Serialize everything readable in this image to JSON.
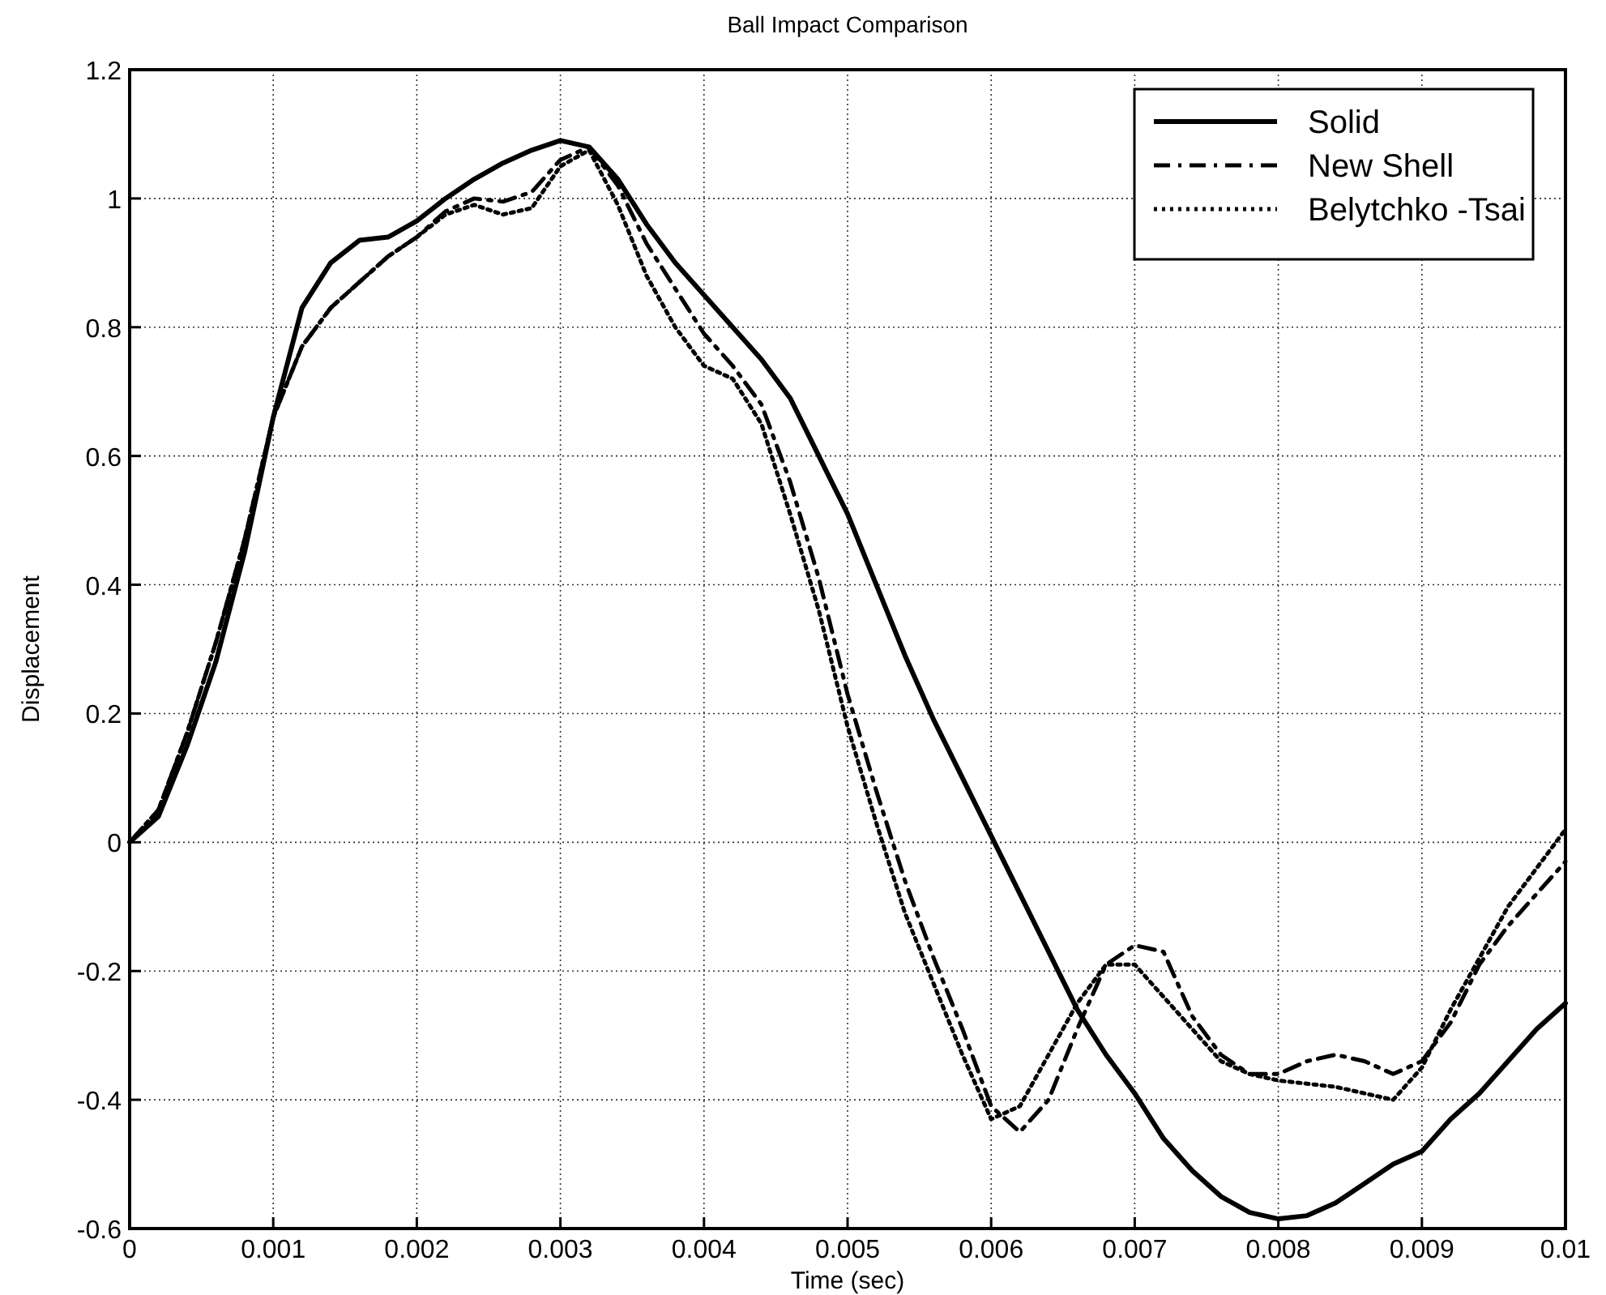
{
  "chart_data": {
    "type": "line",
    "title": "Ball Impact Comparison",
    "xlabel": "Time (sec)",
    "ylabel": "Displacement",
    "x": [
      0,
      0.0002,
      0.0004,
      0.0006,
      0.0008,
      0.001,
      0.0012,
      0.0014,
      0.0016,
      0.0018,
      0.002,
      0.0022,
      0.0024,
      0.0026,
      0.0028,
      0.003,
      0.0032,
      0.0034,
      0.0036,
      0.0038,
      0.004,
      0.0042,
      0.0044,
      0.0046,
      0.0048,
      0.005,
      0.0052,
      0.0054,
      0.0056,
      0.0058,
      0.006,
      0.0062,
      0.0064,
      0.0066,
      0.0068,
      0.007,
      0.0072,
      0.0074,
      0.0076,
      0.0078,
      0.008,
      0.0082,
      0.0084,
      0.0086,
      0.0088,
      0.009,
      0.0092,
      0.0094,
      0.0096,
      0.0098,
      0.01
    ],
    "series": [
      {
        "name": "Solid",
        "color": "#000000",
        "line_style": "solid",
        "values": [
          0,
          0.04,
          0.15,
          0.28,
          0.45,
          0.66,
          0.83,
          0.9,
          0.935,
          0.94,
          0.965,
          1.0,
          1.03,
          1.055,
          1.075,
          1.09,
          1.08,
          1.03,
          0.96,
          0.9,
          0.85,
          0.8,
          0.75,
          0.69,
          0.6,
          0.51,
          0.4,
          0.29,
          0.19,
          0.1,
          0.01,
          -0.08,
          -0.17,
          -0.26,
          -0.33,
          -0.39,
          -0.46,
          -0.51,
          -0.55,
          -0.575,
          -0.585,
          -0.58,
          -0.56,
          -0.53,
          -0.5,
          -0.48,
          -0.43,
          -0.39,
          -0.34,
          -0.29,
          -0.25
        ]
      },
      {
        "name": "New Shell",
        "color": "#000000",
        "line_style": "dashdot",
        "values": [
          0,
          0.05,
          0.17,
          0.31,
          0.47,
          0.66,
          0.77,
          0.83,
          0.87,
          0.91,
          0.94,
          0.98,
          1.0,
          0.995,
          1.01,
          1.06,
          1.08,
          1.02,
          0.93,
          0.86,
          0.79,
          0.74,
          0.68,
          0.56,
          0.41,
          0.23,
          0.08,
          -0.06,
          -0.18,
          -0.29,
          -0.41,
          -0.45,
          -0.4,
          -0.29,
          -0.19,
          -0.16,
          -0.17,
          -0.27,
          -0.33,
          -0.36,
          -0.36,
          -0.34,
          -0.33,
          -0.34,
          -0.36,
          -0.34,
          -0.28,
          -0.19,
          -0.13,
          -0.08,
          -0.03
        ]
      },
      {
        "name": "Belytchko -Tsai",
        "color": "#000000",
        "line_style": "dotted",
        "values": [
          0,
          0.05,
          0.17,
          0.31,
          0.47,
          0.66,
          0.77,
          0.83,
          0.87,
          0.91,
          0.94,
          0.975,
          0.99,
          0.975,
          0.985,
          1.05,
          1.075,
          0.99,
          0.88,
          0.8,
          0.74,
          0.72,
          0.65,
          0.51,
          0.36,
          0.18,
          0.03,
          -0.11,
          -0.22,
          -0.33,
          -0.43,
          -0.41,
          -0.33,
          -0.25,
          -0.19,
          -0.19,
          -0.24,
          -0.29,
          -0.34,
          -0.36,
          -0.37,
          -0.375,
          -0.38,
          -0.39,
          -0.4,
          -0.35,
          -0.26,
          -0.18,
          -0.1,
          -0.04,
          0.02
        ]
      }
    ],
    "xlim": [
      0,
      0.01
    ],
    "xticks": [
      0,
      0.001,
      0.002,
      0.003,
      0.004,
      0.005,
      0.006,
      0.007,
      0.008,
      0.009,
      0.01
    ],
    "ylim": [
      -0.6,
      1.2
    ],
    "yticks": [
      -0.6,
      -0.4,
      -0.2,
      0,
      0.2,
      0.4,
      0.6,
      0.8,
      1,
      1.2
    ],
    "grid": true,
    "legend": "top right"
  }
}
